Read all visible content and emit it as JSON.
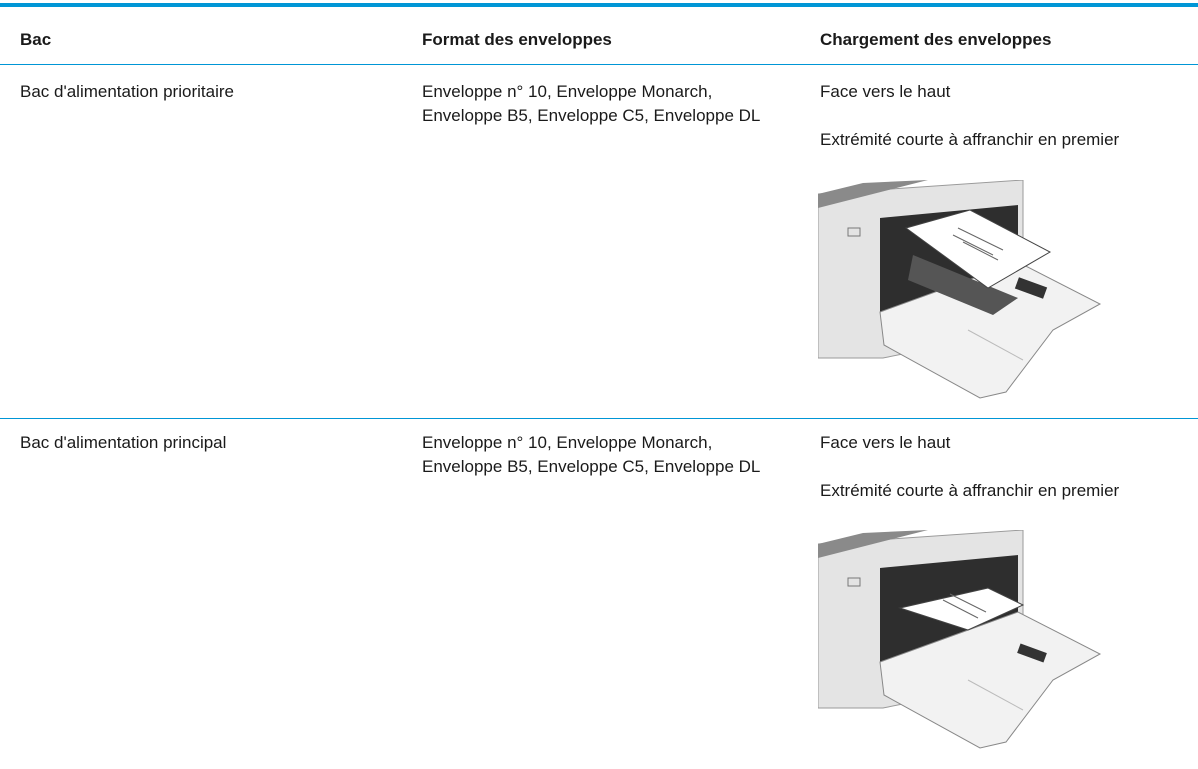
{
  "table": {
    "header": [
      "Bac",
      "Format des enveloppes",
      "Chargement des enveloppes"
    ],
    "rows": [
      {
        "tray": "Bac d'alimentation prioritaire",
        "formats": [
          "Enveloppe n° 10, Enveloppe Monarch,",
          "Enveloppe B5, Enveloppe C5, Enveloppe DL"
        ],
        "loading": [
          "Face vers le haut",
          "Extrémité courte à affranchir en premier"
        ]
      },
      {
        "tray": "Bac d'alimentation principal",
        "formats": [
          "Enveloppe n° 10, Enveloppe Monarch,",
          "Enveloppe B5, Enveloppe C5, Enveloppe DL"
        ],
        "loading": [
          "Face vers le haut",
          "Extrémité courte à affranchir en premier"
        ]
      }
    ]
  }
}
